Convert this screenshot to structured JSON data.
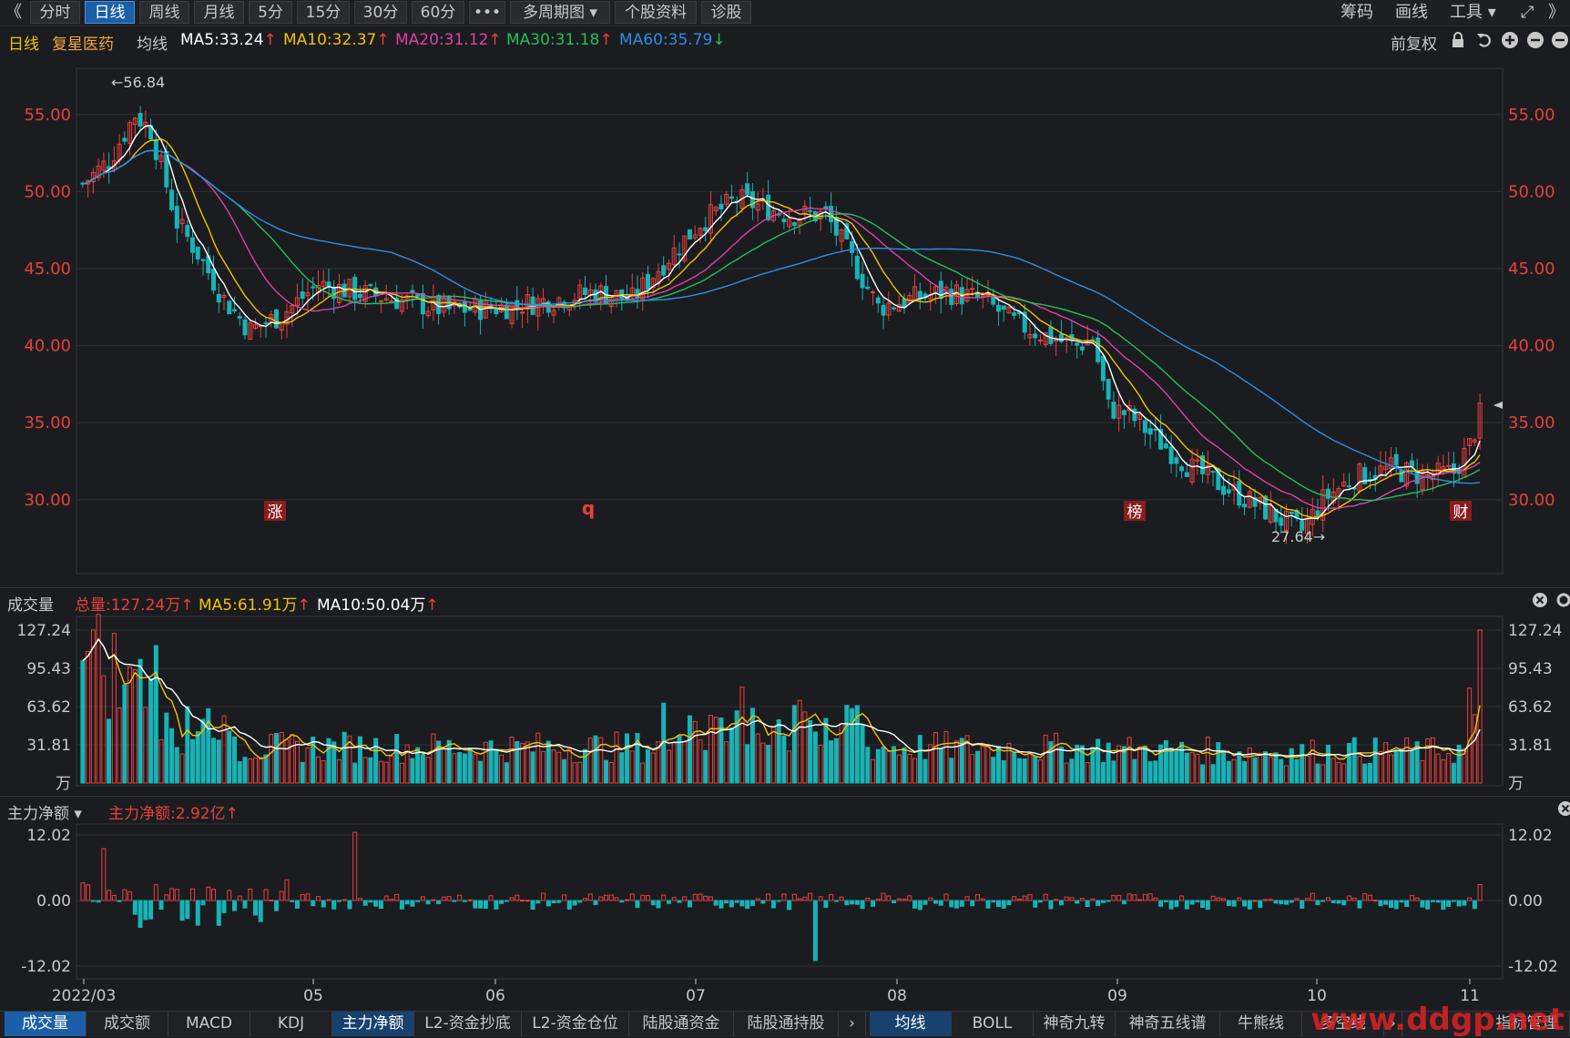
{
  "toolbar": {
    "back": "《",
    "tabs": [
      "分时",
      "日线",
      "周线",
      "月线",
      "5分",
      "15分",
      "30分",
      "60分",
      "•••",
      "多周期图 ▾",
      "个股资料",
      "诊股"
    ],
    "active_tab": "日线",
    "right": [
      "筹码",
      "画线",
      "工具 ▾"
    ],
    "expand": "⤢",
    "more": "》"
  },
  "info": {
    "period": "日线",
    "stock": "复星医药",
    "ma_label": "均线",
    "ma5": "MA5:33.24",
    "ma10": "MA10:32.37",
    "ma20": "MA20:31.12",
    "ma30": "MA30:31.18",
    "ma60": "MA60:35.79",
    "adjust": "前复权",
    "icons": [
      "lock-icon",
      "undo-icon",
      "zoom-in-icon",
      "zoom-out-icon",
      "settings-icon"
    ]
  },
  "price_panel": {
    "yticks": [
      "55.00",
      "50.00",
      "45.00",
      "40.00",
      "35.00",
      "30.00"
    ],
    "high_label": "←56.84",
    "low_label": "27.64→",
    "events": [
      "涨",
      "q",
      "榜",
      "财"
    ]
  },
  "volume_panel": {
    "title": "成交量",
    "total": "总量:127.24万",
    "ma5": "MA5:61.91万",
    "ma10": "MA10:50.04万",
    "yticks": [
      "127.24",
      "95.43",
      "63.62",
      "31.81",
      "万"
    ]
  },
  "flow_panel": {
    "title": "主力净额 ▾",
    "net": "主力净额:2.92亿",
    "yticks": [
      "12.02",
      "0.00",
      "-12.02"
    ]
  },
  "xaxis": [
    "2022/03",
    "05",
    "06",
    "07",
    "08",
    "09",
    "10",
    "11"
  ],
  "bottom_tabs_left": [
    "成交量",
    "成交额",
    "MACD",
    "KDJ",
    "主力净额",
    "L2-资金抄底",
    "L2-资金仓位",
    "陆股通资金",
    "陆股通持股"
  ],
  "bottom_tabs_right": [
    "均线",
    "BOLL",
    "神奇九转",
    "神奇五线谱",
    "牛熊线",
    "多空线",
    "指标管理"
  ],
  "watermark": "www.ddgp.net",
  "colors": {
    "up": "#e8413c",
    "down": "#17b3b6",
    "ma5": "#ffffff",
    "ma10": "#f2c200",
    "ma20": "#e040a8",
    "ma30": "#22c05a",
    "ma60": "#2b8fe8"
  },
  "chart_data": {
    "type": "candlestick",
    "title": "复星医药 日线",
    "y_range": [
      25.5,
      58
    ],
    "key_points": [
      {
        "label": "high",
        "value": 56.84
      },
      {
        "label": "low",
        "value": 27.64
      }
    ],
    "ma_values": {
      "MA5": 33.24,
      "MA10": 32.37,
      "MA20": 31.12,
      "MA30": 31.18,
      "MA60": 35.79
    },
    "volume_latest": 127.24,
    "volume_max": 127.24,
    "net_flow_latest": 2.92
  }
}
